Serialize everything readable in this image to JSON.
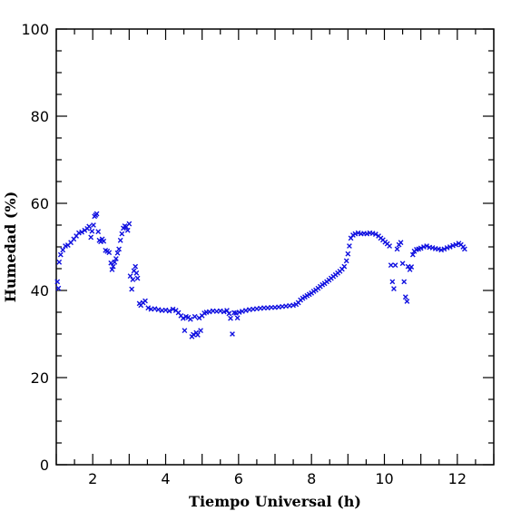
{
  "chart_data": {
    "type": "scatter",
    "xlabel": "Tiempo Universal (h)",
    "ylabel": "Humedad (%)",
    "xlim": [
      1,
      13
    ],
    "ylim": [
      0,
      100
    ],
    "x_ticks": [
      2,
      4,
      6,
      8,
      10,
      12
    ],
    "y_ticks": [
      0,
      20,
      40,
      60,
      80,
      100
    ],
    "grid": false,
    "marker": "x",
    "color": "#1010e0",
    "points": [
      [
        1.03,
        42.0
      ],
      [
        1.06,
        40.5
      ],
      [
        1.08,
        46.5
      ],
      [
        1.12,
        48.2
      ],
      [
        1.18,
        49.3
      ],
      [
        1.25,
        50.2
      ],
      [
        1.32,
        50.4
      ],
      [
        1.4,
        51.0
      ],
      [
        1.48,
        51.8
      ],
      [
        1.55,
        52.5
      ],
      [
        1.62,
        53.2
      ],
      [
        1.7,
        53.4
      ],
      [
        1.78,
        53.8
      ],
      [
        1.85,
        54.2
      ],
      [
        1.9,
        54.7
      ],
      [
        1.95,
        52.2
      ],
      [
        1.98,
        53.6
      ],
      [
        2.02,
        55.0
      ],
      [
        2.05,
        57.0
      ],
      [
        2.08,
        57.3
      ],
      [
        2.11,
        57.6
      ],
      [
        2.15,
        53.5
      ],
      [
        2.18,
        51.5
      ],
      [
        2.22,
        51.2
      ],
      [
        2.26,
        51.8
      ],
      [
        2.3,
        51.3
      ],
      [
        2.35,
        49.2
      ],
      [
        2.4,
        49.0
      ],
      [
        2.45,
        48.7
      ],
      [
        2.5,
        46.3
      ],
      [
        2.53,
        44.8
      ],
      [
        2.56,
        45.5
      ],
      [
        2.6,
        46.5
      ],
      [
        2.64,
        47.3
      ],
      [
        2.68,
        48.6
      ],
      [
        2.72,
        49.5
      ],
      [
        2.76,
        51.5
      ],
      [
        2.8,
        53.0
      ],
      [
        2.84,
        54.3
      ],
      [
        2.88,
        54.8
      ],
      [
        2.92,
        54.6
      ],
      [
        2.96,
        53.8
      ],
      [
        3.0,
        55.3
      ],
      [
        3.03,
        43.3
      ],
      [
        3.07,
        40.3
      ],
      [
        3.1,
        42.5
      ],
      [
        3.13,
        44.5
      ],
      [
        3.17,
        45.5
      ],
      [
        3.2,
        44.0
      ],
      [
        3.23,
        42.8
      ],
      [
        3.28,
        37.0
      ],
      [
        3.32,
        36.6
      ],
      [
        3.38,
        37.2
      ],
      [
        3.44,
        37.6
      ],
      [
        3.52,
        36.0
      ],
      [
        3.6,
        35.7
      ],
      [
        3.7,
        35.8
      ],
      [
        3.8,
        35.6
      ],
      [
        3.9,
        35.4
      ],
      [
        4.0,
        35.5
      ],
      [
        4.1,
        35.3
      ],
      [
        4.2,
        35.7
      ],
      [
        4.28,
        35.4
      ],
      [
        4.35,
        34.9
      ],
      [
        4.42,
        34.2
      ],
      [
        4.48,
        33.6
      ],
      [
        4.52,
        30.8
      ],
      [
        4.56,
        34.0
      ],
      [
        4.62,
        33.8
      ],
      [
        4.68,
        33.4
      ],
      [
        4.72,
        29.4
      ],
      [
        4.76,
        29.9
      ],
      [
        4.8,
        34.0
      ],
      [
        4.84,
        30.3
      ],
      [
        4.88,
        29.8
      ],
      [
        4.92,
        33.7
      ],
      [
        4.96,
        30.8
      ],
      [
        5.0,
        34.2
      ],
      [
        5.06,
        34.8
      ],
      [
        5.12,
        35.0
      ],
      [
        5.2,
        35.1
      ],
      [
        5.3,
        35.3
      ],
      [
        5.4,
        35.2
      ],
      [
        5.5,
        35.3
      ],
      [
        5.6,
        35.1
      ],
      [
        5.68,
        35.4
      ],
      [
        5.74,
        34.7
      ],
      [
        5.78,
        33.6
      ],
      [
        5.83,
        30.0
      ],
      [
        5.88,
        34.9
      ],
      [
        5.93,
        34.8
      ],
      [
        5.97,
        33.7
      ],
      [
        6.02,
        35.0
      ],
      [
        6.1,
        35.2
      ],
      [
        6.2,
        35.4
      ],
      [
        6.3,
        35.6
      ],
      [
        6.4,
        35.7
      ],
      [
        6.5,
        35.8
      ],
      [
        6.6,
        35.9
      ],
      [
        6.7,
        36.0
      ],
      [
        6.8,
        36.0
      ],
      [
        6.9,
        36.1
      ],
      [
        7.0,
        36.1
      ],
      [
        7.1,
        36.2
      ],
      [
        7.2,
        36.3
      ],
      [
        7.3,
        36.4
      ],
      [
        7.4,
        36.5
      ],
      [
        7.5,
        36.6
      ],
      [
        7.58,
        36.8
      ],
      [
        7.64,
        37.2
      ],
      [
        7.7,
        37.8
      ],
      [
        7.76,
        38.2
      ],
      [
        7.82,
        38.5
      ],
      [
        7.88,
        38.8
      ],
      [
        7.94,
        39.1
      ],
      [
        8.0,
        39.4
      ],
      [
        8.06,
        39.8
      ],
      [
        8.12,
        40.1
      ],
      [
        8.18,
        40.5
      ],
      [
        8.24,
        40.9
      ],
      [
        8.3,
        41.3
      ],
      [
        8.36,
        41.6
      ],
      [
        8.42,
        42.0
      ],
      [
        8.48,
        42.4
      ],
      [
        8.54,
        42.8
      ],
      [
        8.6,
        43.2
      ],
      [
        8.66,
        43.6
      ],
      [
        8.72,
        44.0
      ],
      [
        8.78,
        44.4
      ],
      [
        8.84,
        44.9
      ],
      [
        8.9,
        45.5
      ],
      [
        8.96,
        46.8
      ],
      [
        9.0,
        48.4
      ],
      [
        9.04,
        50.2
      ],
      [
        9.08,
        52.0
      ],
      [
        9.14,
        52.7
      ],
      [
        9.2,
        53.0
      ],
      [
        9.28,
        53.2
      ],
      [
        9.36,
        53.0
      ],
      [
        9.44,
        53.1
      ],
      [
        9.52,
        53.0
      ],
      [
        9.6,
        53.2
      ],
      [
        9.68,
        53.1
      ],
      [
        9.76,
        52.9
      ],
      [
        9.84,
        52.5
      ],
      [
        9.9,
        52.0
      ],
      [
        9.96,
        51.6
      ],
      [
        10.02,
        51.1
      ],
      [
        10.08,
        50.7
      ],
      [
        10.14,
        50.2
      ],
      [
        10.18,
        45.8
      ],
      [
        10.22,
        42.0
      ],
      [
        10.26,
        40.4
      ],
      [
        10.3,
        45.8
      ],
      [
        10.35,
        49.5
      ],
      [
        10.4,
        50.5
      ],
      [
        10.45,
        51.0
      ],
      [
        10.5,
        46.2
      ],
      [
        10.54,
        42.0
      ],
      [
        10.58,
        38.5
      ],
      [
        10.62,
        37.5
      ],
      [
        10.65,
        45.5
      ],
      [
        10.7,
        44.8
      ],
      [
        10.74,
        45.4
      ],
      [
        10.78,
        48.2
      ],
      [
        10.82,
        49.0
      ],
      [
        10.88,
        49.4
      ],
      [
        10.94,
        49.5
      ],
      [
        11.0,
        49.7
      ],
      [
        11.08,
        50.0
      ],
      [
        11.16,
        50.2
      ],
      [
        11.24,
        49.9
      ],
      [
        11.32,
        49.8
      ],
      [
        11.4,
        49.6
      ],
      [
        11.48,
        49.5
      ],
      [
        11.56,
        49.3
      ],
      [
        11.64,
        49.5
      ],
      [
        11.72,
        49.8
      ],
      [
        11.8,
        50.0
      ],
      [
        11.88,
        50.3
      ],
      [
        11.96,
        50.5
      ],
      [
        12.04,
        50.8
      ],
      [
        12.1,
        50.5
      ],
      [
        12.16,
        50.0
      ],
      [
        12.2,
        49.5
      ]
    ]
  }
}
